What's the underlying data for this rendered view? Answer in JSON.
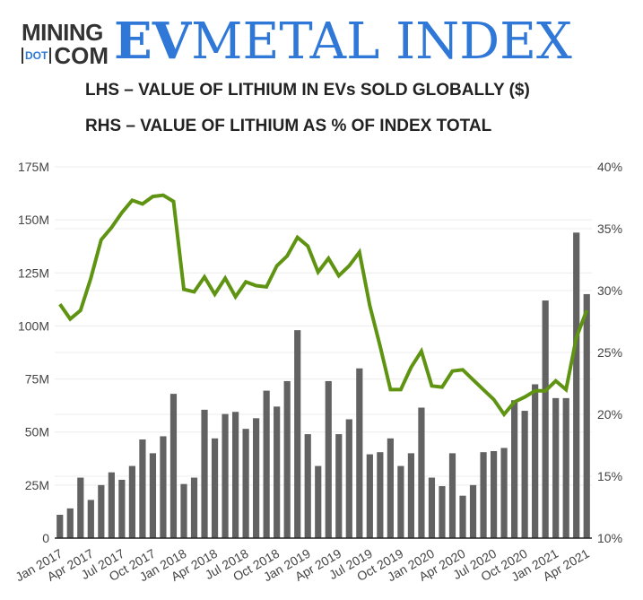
{
  "logo": {
    "line1": "MINING",
    "dot": "DOT",
    "line2": "COM",
    "ev": "EV",
    "rest": "METAL INDEX"
  },
  "subtitles": {
    "lhs": "LHS – VALUE OF LITHIUM IN EVs SOLD GLOBALLY ($)",
    "rhs": "RHS – VALUE OF LITHIUM AS % OF INDEX TOTAL"
  },
  "chart_data": {
    "type": "bar+line",
    "x": [
      "Jan 2017",
      "Feb 2017",
      "Mar 2017",
      "Apr 2017",
      "May 2017",
      "Jun 2017",
      "Jul 2017",
      "Aug 2017",
      "Sep 2017",
      "Oct 2017",
      "Nov 2017",
      "Dec 2017",
      "Jan 2018",
      "Feb 2018",
      "Mar 2018",
      "Apr 2018",
      "May 2018",
      "Jun 2018",
      "Jul 2018",
      "Aug 2018",
      "Sep 2018",
      "Oct 2018",
      "Nov 2018",
      "Dec 2018",
      "Jan 2019",
      "Feb 2019",
      "Mar 2019",
      "Apr 2019",
      "May 2019",
      "Jun 2019",
      "Jul 2019",
      "Aug 2019",
      "Sep 2019",
      "Oct 2019",
      "Nov 2019",
      "Dec 2019",
      "Jan 2020",
      "Feb 2020",
      "Mar 2020",
      "Apr 2020",
      "May 2020",
      "Jun 2020",
      "Jul 2020",
      "Aug 2020",
      "Sep 2020",
      "Oct 2020",
      "Nov 2020",
      "Dec 2020",
      "Jan 2021",
      "Feb 2021",
      "Mar 2021",
      "Apr 2021"
    ],
    "xtick_labels": [
      "Jan 2017",
      "Apr 2017",
      "Jul 2017",
      "Oct 2017",
      "Jan 2018",
      "Apr 2018",
      "Jul 2018",
      "Oct 2018",
      "Jan 2019",
      "Apr 2019",
      "Jul 2019",
      "Oct 2019",
      "Jan 2020",
      "Apr 2020",
      "Jul 2020",
      "Oct 2020",
      "Jan 2021",
      "Apr 2021"
    ],
    "series": [
      {
        "axis": "left",
        "type": "bar",
        "color": "#626262",
        "unit": "M$",
        "values": [
          11,
          14,
          28.5,
          18,
          25,
          31,
          27.5,
          34,
          46.5,
          40,
          48,
          68,
          25.5,
          28.5,
          60.5,
          47,
          58.5,
          59.5,
          51.5,
          56.5,
          69.5,
          62,
          74,
          98,
          49,
          34,
          74,
          49,
          56,
          80,
          39.5,
          40.5,
          47,
          34,
          40,
          61.5,
          28.5,
          24.5,
          40,
          20,
          25,
          40.5,
          41,
          42.5,
          65,
          60,
          72.5,
          112,
          66,
          66,
          144,
          115
        ]
      },
      {
        "axis": "right",
        "type": "line",
        "color": "#5f9412",
        "unit": "%",
        "values": [
          28.9,
          27.7,
          28.4,
          31,
          34.1,
          35.1,
          36.3,
          37.3,
          37,
          37.6,
          37.7,
          37.2,
          30.1,
          29.9,
          31.1,
          29.7,
          31,
          29.5,
          30.7,
          30.4,
          30.3,
          32,
          32.8,
          34.3,
          33.6,
          31.5,
          32.6,
          31.2,
          32,
          33.1,
          28.8,
          25.5,
          22,
          22,
          23.8,
          25.1,
          22.3,
          22.2,
          23.5,
          23.6,
          22.8,
          22,
          21.2,
          20,
          21,
          21.4,
          21.9,
          21.9,
          22.7,
          22,
          26.2,
          28.4
        ]
      }
    ],
    "left_axis": {
      "ylim": [
        0,
        175
      ],
      "ticks": [
        "0",
        "25M",
        "50M",
        "75M",
        "100M",
        "125M",
        "150M",
        "175M"
      ]
    },
    "right_axis": {
      "ylim": [
        10,
        40
      ],
      "ticks": [
        "10%",
        "15%",
        "20%",
        "25%",
        "30%",
        "35%",
        "40%"
      ]
    },
    "grid": true
  }
}
